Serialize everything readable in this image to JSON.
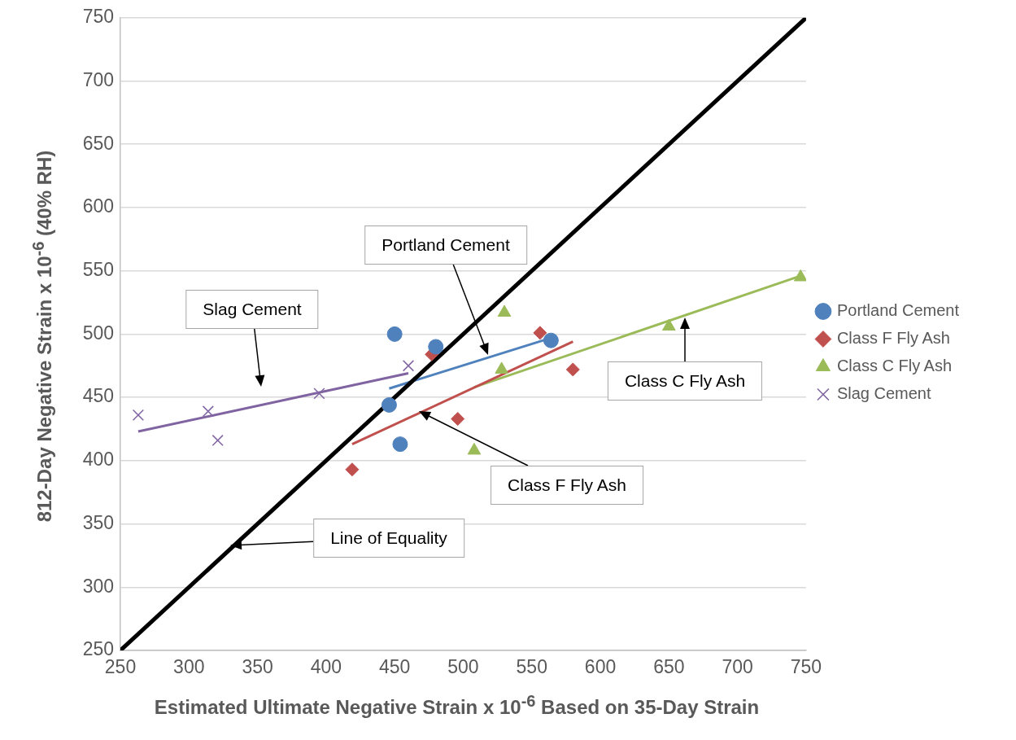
{
  "chart_data": {
    "type": "scatter",
    "xlabel": "Estimated Ultimate Negative Strain x 10$^{-6}$ Based on 35-Day Strain",
    "ylabel": "812-Day Negative Strain x 10$^{-6}$ (40% RH)",
    "xlim": [
      250,
      750
    ],
    "xticks": [
      250,
      300,
      350,
      400,
      450,
      500,
      550,
      600,
      650,
      700,
      750
    ],
    "ylim": [
      250,
      750
    ],
    "yticks": [
      250,
      300,
      350,
      400,
      450,
      500,
      550,
      600,
      650,
      700,
      750
    ],
    "grid": "y",
    "legend": "right",
    "series": [
      {
        "type": "line",
        "color": "#000000",
        "x": [
          250,
          750
        ],
        "values": [
          250,
          750
        ]
      },
      {
        "type": "line",
        "color": "#4f81bd",
        "x": [
          446,
          564
        ],
        "values": [
          457,
          497
        ]
      },
      {
        "type": "line",
        "color": "#c0504d",
        "x": [
          419,
          580
        ],
        "values": [
          413,
          494
        ]
      },
      {
        "type": "line",
        "color": "#9bbb59",
        "x": [
          508,
          746
        ],
        "values": [
          458,
          546
        ]
      },
      {
        "type": "line",
        "color": "#8064a2",
        "x": [
          263,
          460
        ],
        "values": [
          423,
          469
        ]
      },
      {
        "name": "Portland Cement",
        "marker": "circle",
        "color": "#4f81bd",
        "x": [
          450,
          480,
          446,
          454,
          564
        ],
        "values": [
          500,
          490,
          444,
          413,
          495
        ]
      },
      {
        "name": "Class F Fly Ash",
        "marker": "diamond",
        "color": "#c0504d",
        "x": [
          477,
          556,
          580,
          496,
          419
        ],
        "values": [
          484,
          501,
          472,
          433,
          393
        ]
      },
      {
        "name": "Class C Fly Ash",
        "marker": "triangle",
        "color": "#9bbb59",
        "x": [
          530,
          528,
          508,
          650,
          746
        ],
        "values": [
          517,
          472,
          408,
          506,
          545
        ]
      },
      {
        "name": "Slag Cement",
        "marker": "cross",
        "color": "#8064a2",
        "x": [
          263,
          314,
          321,
          395,
          460
        ],
        "values": [
          436,
          439,
          416,
          453,
          475
        ]
      }
    ],
    "annotations": [
      "Portland Cement",
      "Slag Cement",
      "Class C Fly Ash",
      "Class F Fly Ash",
      "Line of Equality"
    ]
  }
}
